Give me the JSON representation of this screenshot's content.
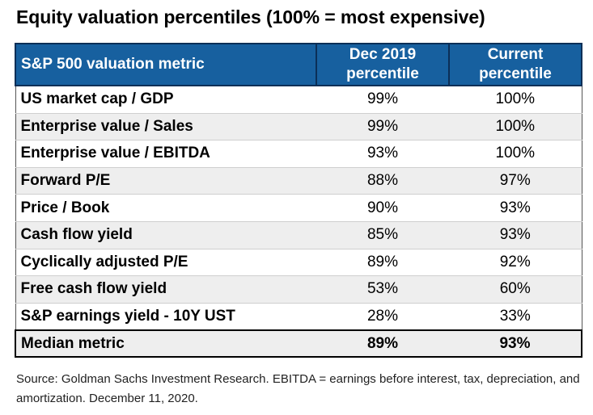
{
  "title": "Equity valuation percentiles (100% = most expensive)",
  "source": "Source: Goldman Sachs Investment Research. EBITDA = earnings before interest, tax, depreciation, and amortization. December 11, 2020.",
  "chart_data": {
    "type": "table",
    "title": "Equity valuation percentiles (100% = most expensive)",
    "header_color": "#17609f",
    "columns": [
      "S&P 500 valuation metric",
      "Dec 2019 percentile",
      "Current percentile"
    ],
    "rows": [
      {
        "metric": "US market cap / GDP",
        "dec2019": "99%",
        "current": "100%"
      },
      {
        "metric": "Enterprise value / Sales",
        "dec2019": "99%",
        "current": "100%"
      },
      {
        "metric": "Enterprise value / EBITDA",
        "dec2019": "93%",
        "current": "100%"
      },
      {
        "metric": "Forward P/E",
        "dec2019": "88%",
        "current": "97%"
      },
      {
        "metric": "Price / Book",
        "dec2019": "90%",
        "current": "93%"
      },
      {
        "metric": "Cash flow yield",
        "dec2019": "85%",
        "current": "93%"
      },
      {
        "metric": "Cyclically adjusted P/E",
        "dec2019": "89%",
        "current": "92%"
      },
      {
        "metric": "Free cash flow yield",
        "dec2019": "53%",
        "current": "60%"
      },
      {
        "metric": "S&P earnings yield - 10Y UST",
        "dec2019": "28%",
        "current": "33%"
      }
    ],
    "summary": {
      "metric": "Median metric",
      "dec2019": "89%",
      "current": "93%"
    }
  }
}
